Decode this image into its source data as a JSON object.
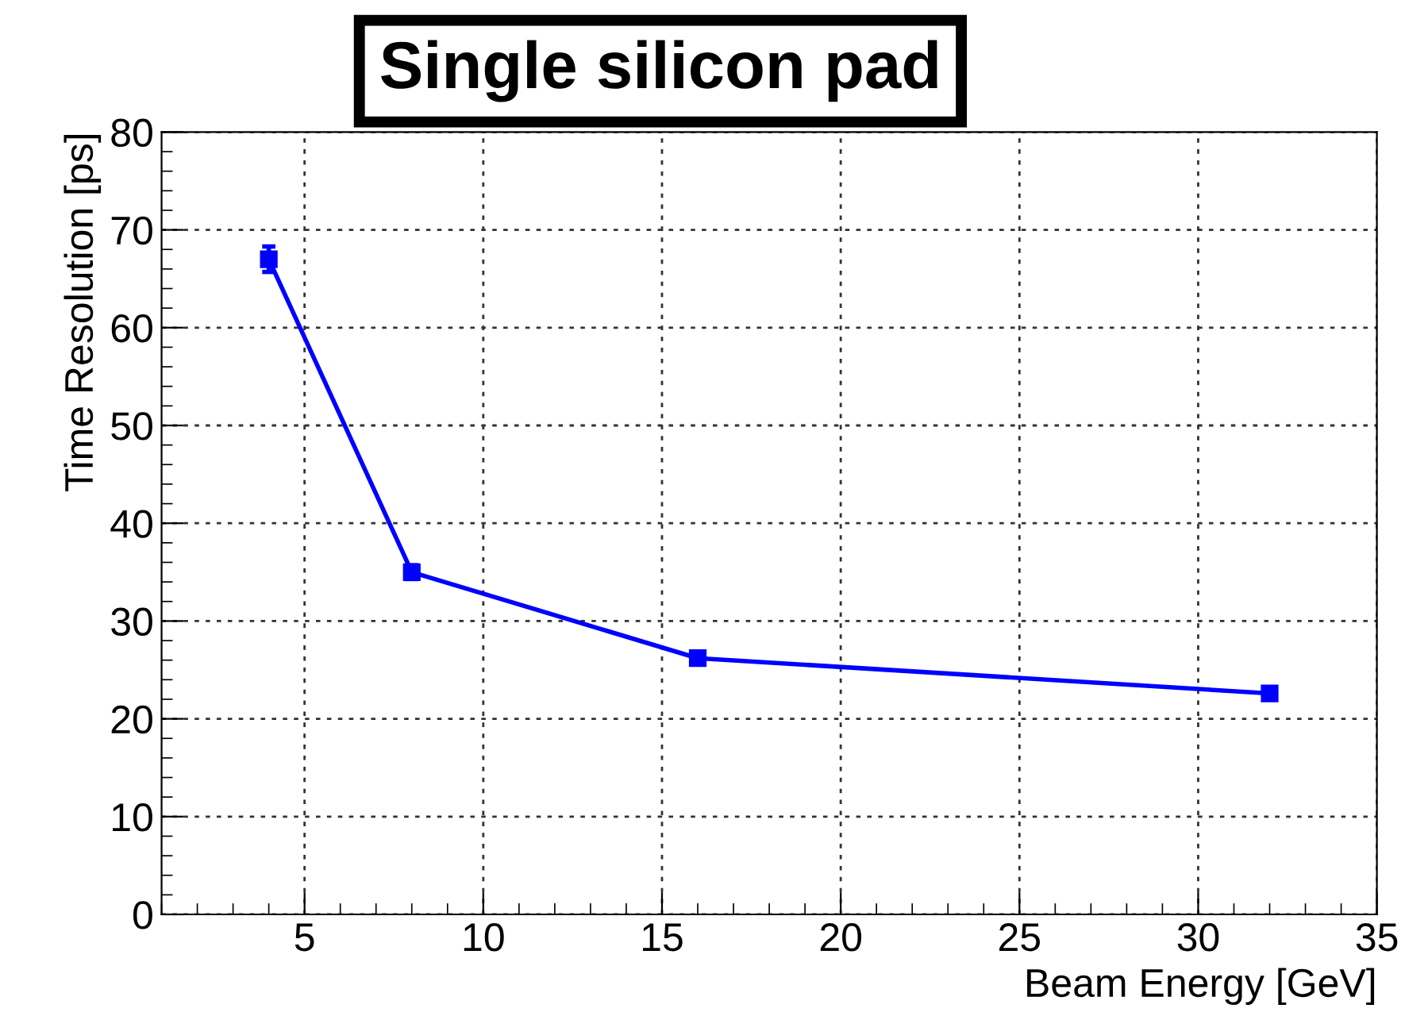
{
  "chart_data": {
    "type": "line",
    "title": "Single silicon pad",
    "xlabel": "Beam Energy [GeV]",
    "ylabel": "Time Resolution [ps]",
    "x": [
      4,
      8,
      16,
      32
    ],
    "series": [
      {
        "color": "#0000ff",
        "values": [
          67.0,
          35.0,
          26.2,
          22.6
        ],
        "errors": [
          1.3,
          0.7,
          0.3,
          0.5
        ]
      }
    ],
    "xlim": [
      1,
      35
    ],
    "xticks": [
      5,
      10,
      15,
      20,
      25,
      30,
      35
    ],
    "ylim": [
      0,
      80
    ],
    "yticks": [
      0,
      10,
      20,
      30,
      40,
      50,
      60,
      70,
      80
    ],
    "grid": true,
    "marker": "square",
    "line_style": "solid"
  }
}
